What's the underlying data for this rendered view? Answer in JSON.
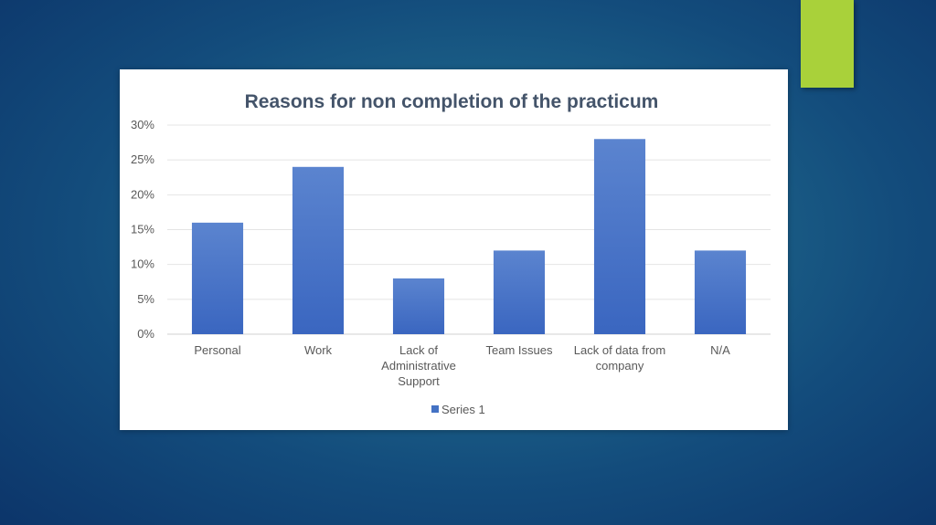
{
  "slide": {
    "accent_color": "#a9d13a"
  },
  "chart_data": {
    "type": "bar",
    "title": "Reasons for non completion of the practicum",
    "categories": [
      [
        "Personal"
      ],
      [
        "Work"
      ],
      [
        "Lack of",
        "Administrative",
        "Support"
      ],
      [
        "Team Issues"
      ],
      [
        "Lack of data from",
        "company"
      ],
      [
        "N/A"
      ]
    ],
    "series": [
      {
        "name": "Series 1",
        "values": [
          16,
          24,
          8,
          12,
          28,
          12
        ],
        "color": "#4472c4"
      }
    ],
    "ylim": [
      0,
      30
    ],
    "yticks": [
      0,
      5,
      10,
      15,
      20,
      25,
      30
    ],
    "yunit": "%",
    "xlabel": "",
    "ylabel": "",
    "grid": true,
    "legend": "bottom"
  }
}
